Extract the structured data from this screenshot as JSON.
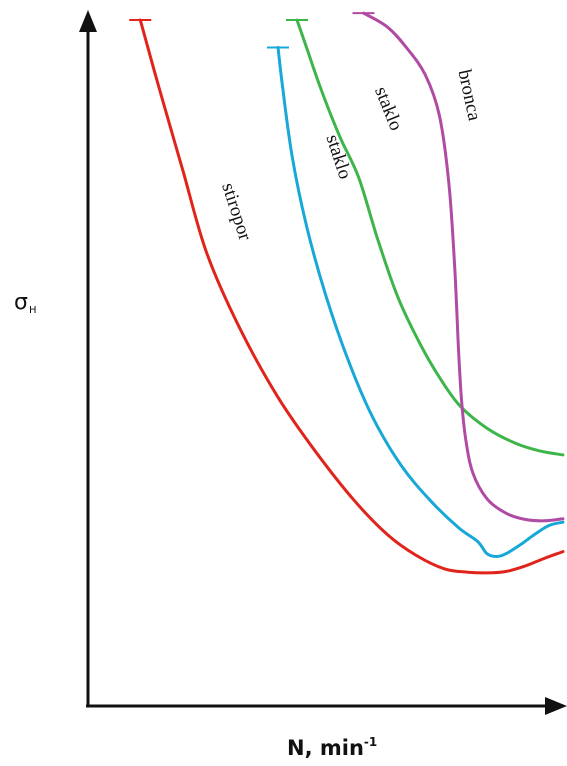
{
  "chart_data": {
    "type": "line",
    "title": "",
    "xlabel": "N, min",
    "xlabel_superscript": "-1",
    "ylabel": "σ",
    "ylabel_subscript": "H",
    "xlim": [
      0,
      100
    ],
    "ylim": [
      0,
      100
    ],
    "grid": false,
    "legend": "none",
    "series": [
      {
        "name": "stiropor",
        "color": "#e0241b",
        "x": [
          11,
          15,
          20,
          25,
          32,
          40,
          48,
          56,
          63,
          69,
          75,
          80,
          84,
          88,
          92,
          96,
          100
        ],
        "y": [
          100,
          90,
          78,
          66,
          55,
          45,
          37,
          30,
          25,
          22,
          20,
          19.5,
          19.4,
          19.6,
          20.4,
          21.5,
          22.5
        ],
        "cap": true
      },
      {
        "name": "staklo",
        "color": "#17a8d8",
        "x": [
          40,
          41,
          43,
          46,
          50,
          55,
          60,
          66,
          72,
          78,
          82,
          84,
          86,
          88,
          91,
          94,
          97,
          100
        ],
        "y": [
          96,
          90,
          80,
          70,
          60,
          50,
          42,
          35,
          30,
          26,
          24,
          22.2,
          21.8,
          22.2,
          23.5,
          25,
          26.3,
          26.8
        ],
        "cap": true
      },
      {
        "name": "staklo",
        "color": "#3db54a",
        "x": [
          44,
          46,
          49,
          53,
          57,
          61,
          65,
          69,
          73,
          78,
          84,
          90,
          95,
          100
        ],
        "y": [
          100,
          96,
          90,
          83,
          77,
          68,
          60,
          54,
          49,
          44,
          40.5,
          38.3,
          37.2,
          36.6
        ],
        "cap": true
      },
      {
        "name": "bronca",
        "color": "#b04ba4",
        "x": [
          58,
          63,
          67,
          71,
          74,
          76,
          77.2,
          78,
          78.6,
          79.5,
          81,
          84,
          88,
          92,
          96,
          100
        ],
        "y": [
          101,
          99,
          96,
          92,
          86,
          76,
          64,
          52,
          45,
          39,
          34,
          30.2,
          28.1,
          27.2,
          27,
          27.3
        ],
        "cap": true
      }
    ],
    "annotations": [
      {
        "text": "stiropor",
        "series": 0,
        "x": 31,
        "y": 72,
        "rotation": 72
      },
      {
        "text": "staklo",
        "series": 1,
        "x": 52.5,
        "y": 80,
        "rotation": 72
      },
      {
        "text": "staklo",
        "series": 2,
        "x": 63,
        "y": 87,
        "rotation": 68
      },
      {
        "text": "bronca",
        "series": 3,
        "x": 80,
        "y": 89,
        "rotation": 78
      }
    ]
  }
}
